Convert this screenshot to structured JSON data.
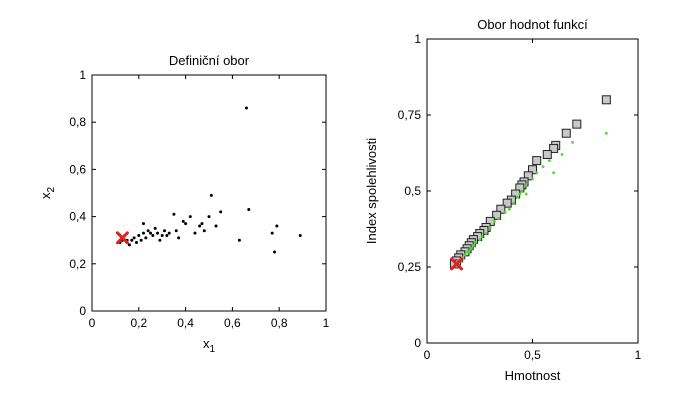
{
  "chart_data": [
    {
      "type": "scatter",
      "title": "Definiční obor",
      "xlabel": "x",
      "xlabel_sub": "1",
      "ylabel": "x",
      "ylabel_sub": "2",
      "xlim": [
        0,
        1
      ],
      "ylim": [
        0,
        1
      ],
      "xticks": [
        0,
        0.2,
        0.4,
        0.6,
        0.8,
        1
      ],
      "xtick_labels": [
        "0",
        "0,2",
        "0,4",
        "0,6",
        "0,8",
        "1"
      ],
      "yticks": [
        0,
        0.2,
        0.4,
        0.6,
        0.8,
        1
      ],
      "ytick_labels": [
        "0",
        "0,2",
        "0,4",
        "0,6",
        "0,8",
        "1"
      ],
      "grid": false,
      "series": [
        {
          "marker": "dot",
          "color": "#000000",
          "points": [
            [
              0.66,
              0.86
            ],
            [
              0.51,
              0.49
            ],
            [
              0.67,
              0.43
            ],
            [
              0.63,
              0.3
            ],
            [
              0.79,
              0.36
            ],
            [
              0.77,
              0.33
            ],
            [
              0.78,
              0.25
            ],
            [
              0.89,
              0.32
            ],
            [
              0.5,
              0.4
            ],
            [
              0.47,
              0.37
            ],
            [
              0.46,
              0.36
            ],
            [
              0.44,
              0.33
            ],
            [
              0.48,
              0.34
            ],
            [
              0.53,
              0.36
            ],
            [
              0.55,
              0.42
            ],
            [
              0.42,
              0.4
            ],
            [
              0.4,
              0.37
            ],
            [
              0.39,
              0.38
            ],
            [
              0.37,
              0.31
            ],
            [
              0.36,
              0.34
            ],
            [
              0.35,
              0.41
            ],
            [
              0.33,
              0.33
            ],
            [
              0.31,
              0.34
            ],
            [
              0.3,
              0.32
            ],
            [
              0.28,
              0.33
            ],
            [
              0.27,
              0.35
            ],
            [
              0.26,
              0.32
            ],
            [
              0.25,
              0.33
            ],
            [
              0.24,
              0.34
            ],
            [
              0.23,
              0.31
            ],
            [
              0.22,
              0.33
            ],
            [
              0.22,
              0.37
            ],
            [
              0.21,
              0.3
            ],
            [
              0.2,
              0.32
            ],
            [
              0.19,
              0.29
            ],
            [
              0.18,
              0.31
            ],
            [
              0.17,
              0.3
            ],
            [
              0.16,
              0.28
            ],
            [
              0.15,
              0.3
            ],
            [
              0.14,
              0.32
            ],
            [
              0.13,
              0.3
            ],
            [
              0.12,
              0.29
            ],
            [
              0.29,
              0.3
            ],
            [
              0.32,
              0.32
            ]
          ]
        },
        {
          "marker": "x",
          "color": "#dd2222",
          "points": [
            [
              0.13,
              0.31
            ]
          ]
        }
      ]
    },
    {
      "type": "scatter",
      "title": "Obor hodnot funkcí",
      "xlabel": "Hmotnost",
      "ylabel": "Index spolehlivosti",
      "xlim": [
        0,
        1
      ],
      "ylim": [
        0,
        1
      ],
      "xticks": [
        0,
        0.5,
        1
      ],
      "xtick_labels": [
        "0",
        "0,5",
        "1"
      ],
      "yticks": [
        0,
        0.25,
        0.5,
        0.75,
        1
      ],
      "ytick_labels": [
        "0",
        "0,25",
        "0,5",
        "0,75",
        "1"
      ],
      "grid": false,
      "series": [
        {
          "marker": "square",
          "color": "#c8c8c8",
          "points": [
            [
              0.85,
              0.8
            ],
            [
              0.71,
              0.72
            ],
            [
              0.66,
              0.69
            ],
            [
              0.61,
              0.65
            ],
            [
              0.6,
              0.64
            ],
            [
              0.57,
              0.62
            ],
            [
              0.52,
              0.6
            ],
            [
              0.5,
              0.57
            ],
            [
              0.48,
              0.55
            ],
            [
              0.46,
              0.53
            ],
            [
              0.45,
              0.52
            ],
            [
              0.44,
              0.51
            ],
            [
              0.42,
              0.49
            ],
            [
              0.4,
              0.47
            ],
            [
              0.38,
              0.46
            ],
            [
              0.35,
              0.44
            ],
            [
              0.33,
              0.42
            ],
            [
              0.3,
              0.4
            ],
            [
              0.28,
              0.38
            ],
            [
              0.27,
              0.37
            ],
            [
              0.25,
              0.36
            ],
            [
              0.24,
              0.35
            ],
            [
              0.22,
              0.34
            ],
            [
              0.21,
              0.33
            ],
            [
              0.2,
              0.32
            ],
            [
              0.19,
              0.31
            ],
            [
              0.18,
              0.3
            ],
            [
              0.16,
              0.29
            ],
            [
              0.15,
              0.28
            ],
            [
              0.14,
              0.27
            ],
            [
              0.13,
              0.26
            ]
          ]
        },
        {
          "marker": "dot",
          "color": "#44dd22",
          "points": [
            [
              0.85,
              0.69
            ],
            [
              0.69,
              0.66
            ],
            [
              0.64,
              0.62
            ],
            [
              0.58,
              0.6
            ],
            [
              0.55,
              0.58
            ],
            [
              0.52,
              0.56
            ],
            [
              0.5,
              0.54
            ],
            [
              0.47,
              0.52
            ],
            [
              0.45,
              0.5
            ],
            [
              0.44,
              0.49
            ],
            [
              0.43,
              0.48
            ],
            [
              0.41,
              0.46
            ],
            [
              0.39,
              0.44
            ],
            [
              0.37,
              0.43
            ],
            [
              0.34,
              0.41
            ],
            [
              0.32,
              0.4
            ],
            [
              0.3,
              0.38
            ],
            [
              0.28,
              0.36
            ],
            [
              0.26,
              0.35
            ],
            [
              0.25,
              0.34
            ],
            [
              0.23,
              0.33
            ],
            [
              0.22,
              0.32
            ],
            [
              0.21,
              0.31
            ],
            [
              0.2,
              0.3
            ],
            [
              0.19,
              0.3
            ],
            [
              0.18,
              0.29
            ],
            [
              0.17,
              0.28
            ],
            [
              0.16,
              0.27
            ],
            [
              0.15,
              0.27
            ],
            [
              0.14,
              0.26
            ],
            [
              0.6,
              0.56
            ],
            [
              0.47,
              0.49
            ]
          ]
        },
        {
          "marker": "x",
          "color": "#dd2222",
          "points": [
            [
              0.14,
              0.26
            ]
          ]
        }
      ]
    }
  ]
}
